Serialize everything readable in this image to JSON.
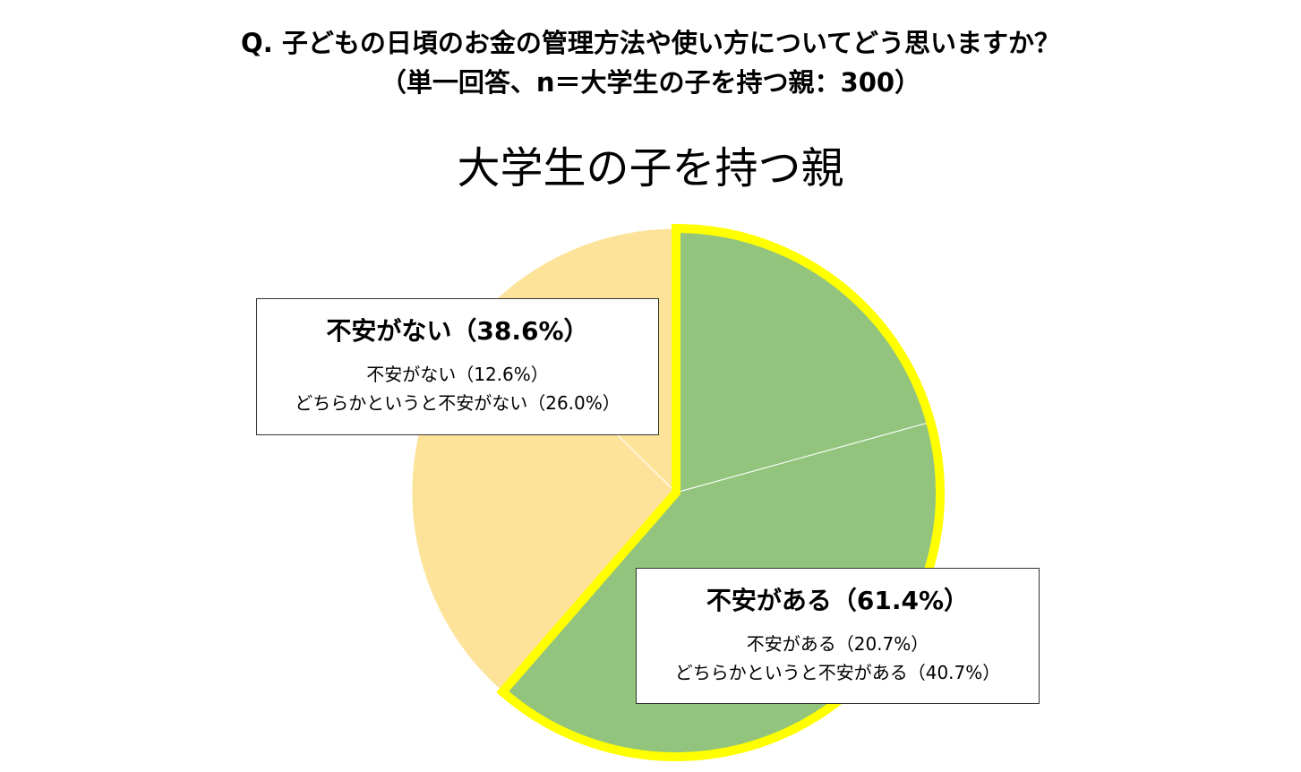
{
  "question": {
    "line1": "Q.  子どもの日頃のお金の管理方法や使い方についてどう思いますか？",
    "line2": "（単一回答、n＝大学生の子を持つ親：300）"
  },
  "chart_data": {
    "type": "pie",
    "title": "大学生の子を持つ親",
    "slices": [
      {
        "name": "不安がある",
        "value": 20.7,
        "color": "#93c47d",
        "group": "不安がある"
      },
      {
        "name": "どちらかというと不安がある",
        "value": 40.7,
        "color": "#93c47d",
        "group": "不安がある"
      },
      {
        "name": "どちらかというと不安がない",
        "value": 26.0,
        "color": "#fde39a",
        "group": "不安がない"
      },
      {
        "name": "不安がない",
        "value": 12.6,
        "color": "#fde39a",
        "group": "不安がない"
      }
    ],
    "highlight_group": "不安がある",
    "highlight_color": "#ffff00",
    "labels": {
      "no_anxiety": {
        "main": "不安がない（38.6%）",
        "sub1": "不安がない（12.6%）",
        "sub2": "どちらかというと不安がない（26.0%）"
      },
      "anxiety": {
        "main": "不安がある（61.4%）",
        "sub1": "不安がある（20.7%）",
        "sub2": "どちらかというと不安がある（40.7%）"
      }
    }
  }
}
